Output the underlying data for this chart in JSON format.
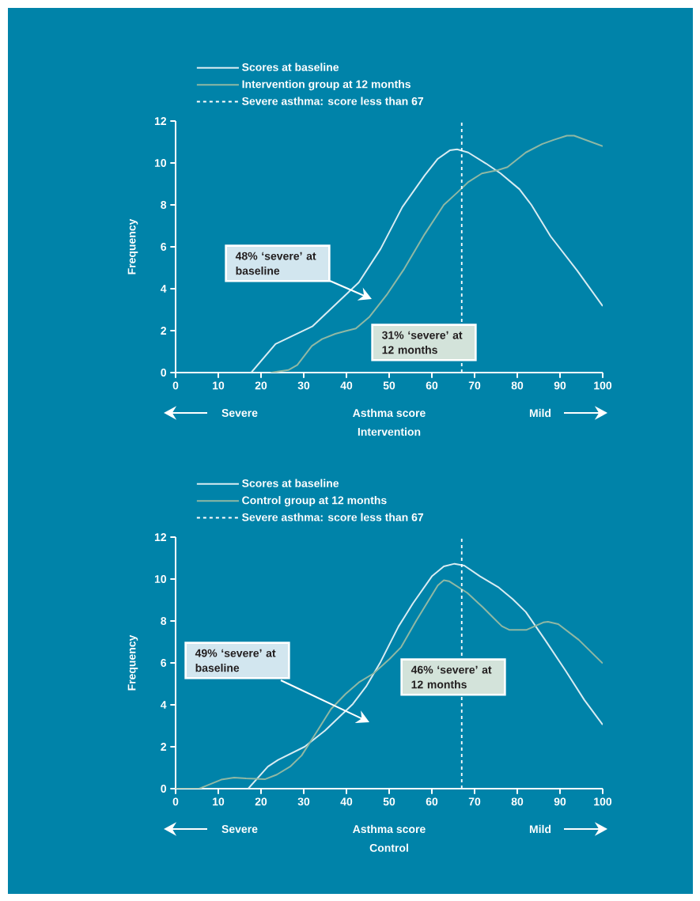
{
  "chart_data": [
    {
      "type": "line",
      "title": "Intervention",
      "xlabel": "Asthma score",
      "ylabel": "Frequency",
      "xlim": [
        0,
        100
      ],
      "ylim": [
        0,
        12
      ],
      "xticks": [
        0,
        10,
        20,
        30,
        40,
        50,
        60,
        70,
        80,
        90,
        100
      ],
      "yticks": [
        0,
        2,
        4,
        6,
        8,
        10,
        12
      ],
      "legend": "top",
      "series": [
        {
          "name": "Scores at baseline",
          "color": "#d8ecf2",
          "x": [
            17.7,
            23.4,
            32,
            42.9,
            48,
            53.1,
            58.3,
            61.4,
            64.2,
            65.9,
            68.5,
            72.7,
            76.1,
            80.5,
            83.3,
            87.8,
            94,
            100
          ],
          "values": [
            0,
            1.36,
            2.2,
            4.3,
            5.9,
            7.9,
            9.4,
            10.2,
            10.6,
            10.65,
            10.5,
            9.97,
            9.5,
            8.75,
            8.0,
            6.5,
            4.87,
            3.17
          ]
        },
        {
          "name": "Intervention group at 12 months",
          "color": "#8fb8a4",
          "x": [
            22.3,
            26.4,
            28.5,
            31.9,
            34.3,
            37.4,
            39.8,
            42.2,
            45.3,
            49.4,
            53.5,
            58.3,
            62.8,
            65.9,
            68.6,
            71.7,
            75.5,
            77.7,
            82,
            85.8,
            88.5,
            91.6,
            93.3,
            100
          ],
          "values": [
            0,
            0.12,
            0.36,
            1.27,
            1.6,
            1.85,
            1.98,
            2.1,
            2.64,
            3.7,
            4.94,
            6.6,
            8.0,
            8.58,
            9.1,
            9.5,
            9.66,
            9.8,
            10.5,
            10.9,
            11.1,
            11.3,
            11.3,
            10.8
          ]
        }
      ],
      "ref_lines": [
        {
          "axis": "x",
          "value": 67,
          "label": "Severe asthma: score less than 67",
          "color": "#ffffff",
          "line_style": "dashed"
        }
      ],
      "annotations": [
        "48% ‘severe’ at baseline",
        "31% ‘severe’ at 12 months",
        "Severe",
        "Mild"
      ]
    },
    {
      "type": "line",
      "title": "Control",
      "xlabel": "Asthma score",
      "ylabel": "Frequency",
      "xlim": [
        0,
        100
      ],
      "ylim": [
        0,
        12
      ],
      "xticks": [
        0,
        10,
        20,
        30,
        40,
        50,
        60,
        70,
        80,
        90,
        100
      ],
      "yticks": [
        0,
        2,
        4,
        6,
        8,
        10,
        12
      ],
      "legend": "top",
      "series": [
        {
          "name": "Scores at baseline",
          "color": "#d8ecf2",
          "x": [
            17,
            21.6,
            24,
            30.2,
            35,
            41.5,
            44.6,
            48,
            52.2,
            55.6,
            60,
            62.8,
            65.3,
            67.6,
            71.3,
            75.5,
            78.9,
            82,
            86.5,
            91.3,
            95.7,
            100
          ],
          "values": [
            0,
            1.05,
            1.37,
            2.0,
            2.77,
            4.04,
            4.87,
            6.05,
            7.74,
            8.85,
            10.13,
            10.6,
            10.73,
            10.64,
            10.13,
            9.62,
            9.05,
            8.43,
            7.1,
            5.63,
            4.23,
            3.05
          ]
        },
        {
          "name": "Control group at 12 months",
          "color": "#8fb8a4",
          "x": [
            0,
            5.5,
            10.7,
            13.7,
            16.5,
            20.9,
            23.7,
            26.8,
            29.5,
            33,
            36.4,
            39.8,
            42.9,
            46.3,
            50.1,
            52.8,
            56.3,
            61.4,
            62.8,
            64,
            68.3,
            72,
            74.4,
            76.4,
            78.1,
            82.2,
            84.4,
            86.1,
            87.2,
            89.6,
            94.4,
            100
          ],
          "values": [
            0,
            0,
            0.43,
            0.53,
            0.49,
            0.45,
            0.67,
            1.05,
            1.58,
            2.7,
            3.8,
            4.52,
            5.07,
            5.49,
            6.19,
            6.75,
            8.0,
            9.7,
            9.94,
            9.9,
            9.34,
            8.64,
            8.15,
            7.75,
            7.58,
            7.58,
            7.78,
            7.93,
            7.96,
            7.85,
            7.1,
            5.98
          ]
        }
      ],
      "ref_lines": [
        {
          "axis": "x",
          "value": 67,
          "label": "Severe asthma: score less than 67",
          "color": "#ffffff",
          "line_style": "dashed"
        }
      ],
      "annotations": [
        "49% ‘severe’ at baseline",
        "46% ‘severe’ at 12 months",
        "Severe",
        "Mild"
      ]
    }
  ]
}
